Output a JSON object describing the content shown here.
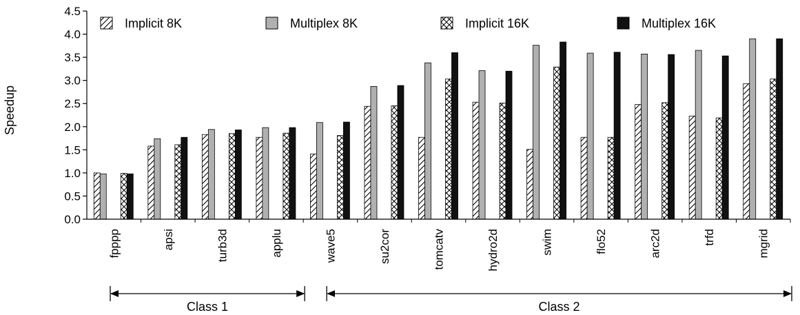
{
  "chart_data": {
    "type": "bar",
    "title": "",
    "xlabel": "",
    "ylabel": "Speedup",
    "ylim": [
      0,
      4.5
    ],
    "yticks": [
      "0.0",
      "0.5",
      "1.0",
      "1.5",
      "2.0",
      "2.5",
      "3.0",
      "3.5",
      "4.0",
      "4.5"
    ],
    "categories": [
      "fpppp",
      "apsi",
      "turb3d",
      "applu",
      "wave5",
      "su2cor",
      "tomcatv",
      "hydro2d",
      "swim",
      "flo52",
      "arc2d",
      "trfd",
      "mgrid"
    ],
    "series": [
      {
        "name": "Implicit 8K",
        "pattern": "diagonal-hatch",
        "values": [
          1.0,
          1.58,
          1.83,
          1.77,
          1.41,
          2.44,
          1.77,
          2.53,
          1.51,
          1.77,
          2.48,
          2.23,
          2.93
        ]
      },
      {
        "name": "Multiplex 8K",
        "pattern": "solid",
        "color": "#b0b0b0",
        "values": [
          0.98,
          1.74,
          1.94,
          1.98,
          2.09,
          2.87,
          3.38,
          3.21,
          3.76,
          3.59,
          3.57,
          3.65,
          3.9
        ]
      },
      {
        "name": "Implicit 16K",
        "pattern": "cross-hatch",
        "values": [
          0.99,
          1.61,
          1.85,
          1.86,
          1.81,
          2.45,
          3.03,
          2.51,
          3.29,
          1.77,
          2.52,
          2.19,
          3.03
        ]
      },
      {
        "name": "Multiplex 16K",
        "pattern": "solid",
        "color": "#111111",
        "values": [
          0.98,
          1.77,
          1.93,
          1.98,
          2.1,
          2.89,
          3.6,
          3.2,
          3.83,
          3.61,
          3.56,
          3.53,
          3.9
        ]
      }
    ],
    "legend_position": "top",
    "grid": false,
    "annotations": [
      {
        "label": "Class 1",
        "from": "fpppp",
        "to": "applu"
      },
      {
        "label": "Class 2",
        "from": "wave5",
        "to": "mgrid"
      }
    ]
  }
}
